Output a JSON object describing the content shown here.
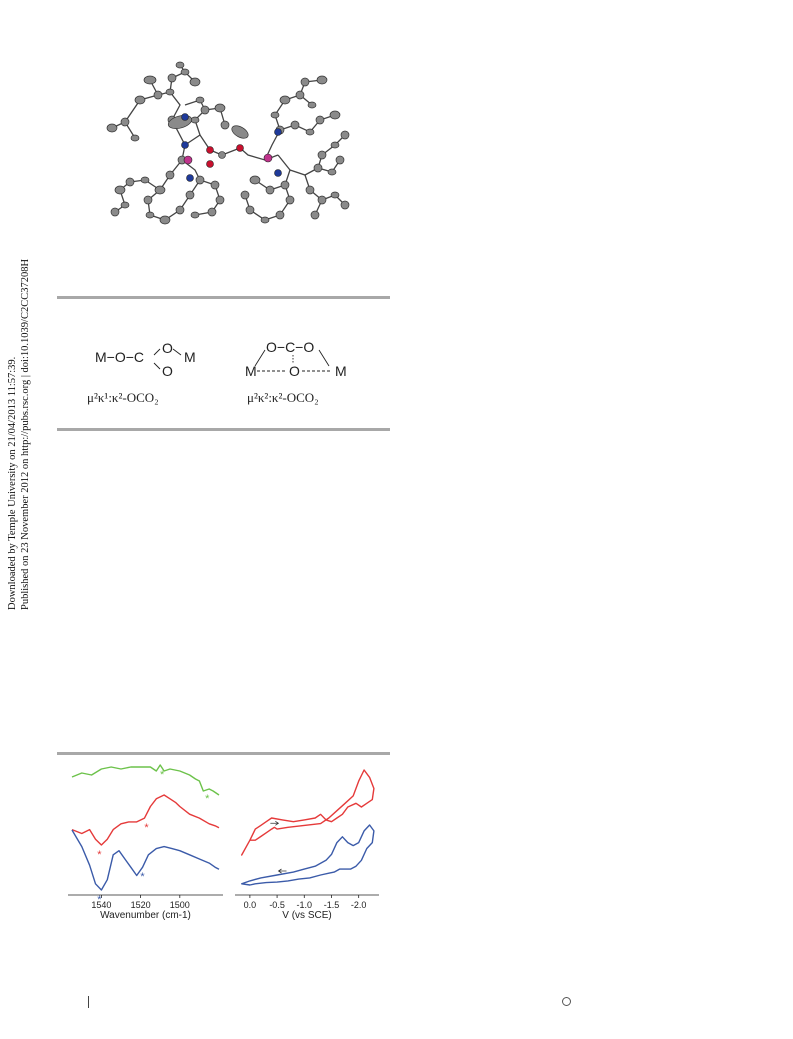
{
  "side_note": {
    "line1": "Downloaded by Temple University on 21/04/2013 11:57:39.",
    "line2": "Published on 23 November 2012 on http://pubs.rsc.org | doi:10.1039/C2CC37208H"
  },
  "scheme": {
    "left": {
      "row1": "M−O−C",
      "top_o": "O",
      "right_m": "M",
      "bottom_o": "O",
      "name": "μ²κ¹:κ²-OCO₂"
    },
    "right": {
      "top": "O−C−O",
      "left_m": "M",
      "mid_o": "O",
      "right_m": "M",
      "name": "μ²κ²:κ²-OCO₂"
    }
  },
  "chart_data": [
    {
      "type": "line",
      "xlabel": "Wavenumber (cm-1)",
      "xticks": [
        1540,
        1520,
        1500
      ],
      "xlim": [
        1555,
        1480
      ],
      "series": [
        {
          "color": "#6cc24a",
          "x": [
            1555,
            1550,
            1545,
            1540,
            1535,
            1530,
            1525,
            1520,
            1515,
            1512,
            1510,
            1508,
            1505,
            1500,
            1495,
            1492,
            1490,
            1488,
            1485,
            1483,
            1480
          ],
          "y": [
            85,
            87,
            86,
            89,
            90,
            89,
            90,
            90,
            90,
            88,
            91,
            88,
            89,
            88,
            86,
            84,
            83,
            78,
            79,
            78,
            76
          ],
          "markers": [
            1509,
            1486
          ]
        },
        {
          "color": "#e53a3a",
          "x": [
            1555,
            1550,
            1546,
            1543,
            1540,
            1537,
            1534,
            1530,
            1526,
            1522,
            1518,
            1515,
            1512,
            1508,
            1505,
            1502,
            1500,
            1495,
            1490,
            1485,
            1482,
            1480
          ],
          "y": [
            60,
            58,
            60,
            55,
            52,
            55,
            60,
            63,
            64,
            64,
            66,
            72,
            76,
            78,
            76,
            74,
            72,
            68,
            66,
            63,
            62,
            61
          ],
          "markers": [
            1541,
            1517
          ]
        },
        {
          "color": "#3b5ba9",
          "x": [
            1555,
            1550,
            1546,
            1543,
            1540,
            1537,
            1534,
            1531,
            1528,
            1525,
            1522,
            1519,
            1516,
            1512,
            1508,
            1504,
            1500,
            1495,
            1490,
            1485,
            1482,
            1480
          ],
          "y": [
            62,
            54,
            45,
            36,
            33,
            38,
            50,
            52,
            48,
            44,
            40,
            44,
            50,
            53,
            54,
            53,
            52,
            50,
            48,
            46,
            44,
            43
          ],
          "markers": [
            1541,
            1519
          ]
        }
      ]
    },
    {
      "type": "line",
      "xlabel": "V (vs SCE)",
      "xticks": [
        0.0,
        -0.5,
        -1.0,
        -1.5,
        -2.0
      ],
      "xtick_labels": [
        "0.0",
        "-0.5",
        "-1.0",
        "-1.5",
        "-2.0"
      ],
      "xlim": [
        0.2,
        -2.3
      ],
      "series": [
        {
          "color": "#e53a3a",
          "x": [
            0.15,
            0.0,
            -0.1,
            -0.2,
            -0.3,
            -0.4,
            -0.45,
            -0.5,
            -0.7,
            -1.0,
            -1.3,
            -1.45,
            -1.6,
            -1.75,
            -1.9,
            -2.0,
            -2.1,
            -2.2,
            -2.28,
            -2.25,
            -2.15,
            -2.05,
            -1.95,
            -1.8,
            -1.7,
            -1.6,
            -1.5,
            -1.4,
            -1.3,
            -1.2,
            -1.0,
            -0.8,
            -0.6,
            -0.4,
            -0.3,
            -0.2,
            -0.1,
            0.0,
            0.15
          ],
          "y": [
            6,
            10,
            10,
            11,
            12,
            13,
            13.5,
            13,
            13.5,
            14,
            14.5,
            16,
            18,
            20,
            22,
            26,
            29,
            27,
            24,
            21,
            20,
            19,
            20,
            19,
            17,
            16,
            15,
            15.5,
            17,
            16,
            15.5,
            15,
            15.5,
            16,
            15,
            14,
            13,
            10,
            6
          ],
          "arrow_at": -0.45,
          "arrow_direction": "negative"
        },
        {
          "color": "#3b5ba9",
          "x": [
            0.15,
            0.0,
            -0.2,
            -0.5,
            -0.8,
            -1.0,
            -1.2,
            -1.4,
            -1.5,
            -1.6,
            -1.7,
            -1.8,
            -1.9,
            -2.0,
            -2.1,
            -2.2,
            -2.28,
            -2.25,
            -2.15,
            -2.05,
            -1.95,
            -1.85,
            -1.75,
            -1.65,
            -1.55,
            -1.45,
            -1.3,
            -1.1,
            -0.9,
            -0.7,
            -0.5,
            -0.3,
            -0.1,
            0.0,
            0.15
          ],
          "y": [
            0,
            0.5,
            1,
            1.5,
            2,
            2.5,
            3,
            4,
            5,
            7,
            8,
            7,
            6.5,
            7,
            9,
            10,
            9,
            7,
            6,
            4,
            3,
            2.5,
            2.5,
            2.5,
            2,
            1.8,
            1.5,
            1,
            0.8,
            0.5,
            0.3,
            0.2,
            0,
            -0.2,
            0
          ],
          "arrow_at": -0.6,
          "arrow_direction": "positive"
        }
      ]
    }
  ]
}
